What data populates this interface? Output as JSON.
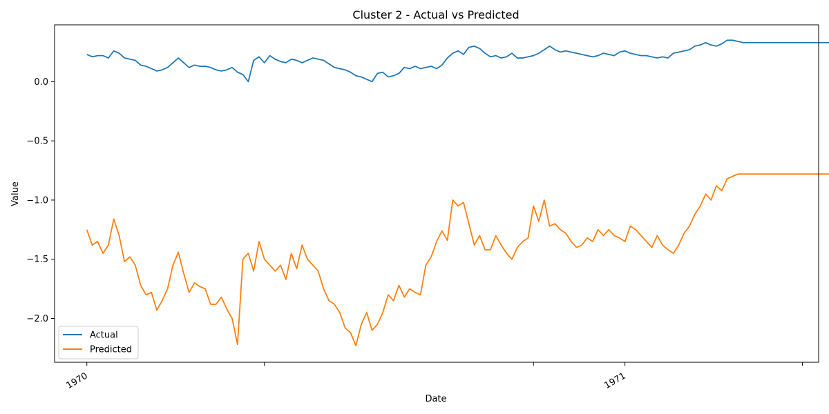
{
  "chart_data": {
    "type": "line",
    "title": "Cluster 2 - Actual vs Predicted",
    "xlabel": "Date",
    "ylabel": "Value",
    "xlim": [
      -0.06,
      1.36
    ],
    "ylim": [
      -2.37,
      0.48
    ],
    "x_ticks": [
      {
        "value": 0.0,
        "label": "1970"
      },
      {
        "value": 0.33,
        "label": ""
      },
      {
        "value": 0.83,
        "label": ""
      },
      {
        "value": 1.0,
        "label": "1971"
      },
      {
        "value": 1.33,
        "label": ""
      }
    ],
    "y_ticks": [
      {
        "value": 0.0,
        "label": "0.0"
      },
      {
        "value": -0.5,
        "label": "−0.5"
      },
      {
        "value": -1.0,
        "label": "−1.0"
      },
      {
        "value": -1.5,
        "label": "−1.5"
      },
      {
        "value": -2.0,
        "label": "−2.0"
      }
    ],
    "legend_position": "lower-left",
    "grid": false,
    "series": [
      {
        "name": "Actual",
        "color": "#1f77b4",
        "x": [
          0.0,
          0.01,
          0.02,
          0.03,
          0.04,
          0.05,
          0.06,
          0.07,
          0.08,
          0.09,
          0.1,
          0.11,
          0.12,
          0.13,
          0.14,
          0.15,
          0.16,
          0.17,
          0.18,
          0.19,
          0.2,
          0.21,
          0.22,
          0.23,
          0.24,
          0.25,
          0.26,
          0.27,
          0.28,
          0.29,
          0.3,
          0.31,
          0.32,
          0.33,
          0.34,
          0.35,
          0.36,
          0.37,
          0.38,
          0.39,
          0.4,
          0.41,
          0.42,
          0.43,
          0.44,
          0.45,
          0.46,
          0.47,
          0.48,
          0.49,
          0.5,
          0.51,
          0.52,
          0.53,
          0.54,
          0.55,
          0.56,
          0.57,
          0.58,
          0.59,
          0.6,
          0.61,
          0.62,
          0.63,
          0.64,
          0.65,
          0.66,
          0.67,
          0.68,
          0.69,
          0.7,
          0.71,
          0.72,
          0.73,
          0.74,
          0.75,
          0.76,
          0.77,
          0.78,
          0.79,
          0.8,
          0.81,
          0.82,
          0.83,
          0.84,
          0.85,
          0.86,
          0.87,
          0.88,
          0.89,
          0.9,
          0.91,
          0.92,
          0.93,
          0.94,
          0.95,
          0.96,
          0.97,
          0.98,
          0.99,
          1.0,
          1.01,
          1.02,
          1.03,
          1.04,
          1.05,
          1.06,
          1.07,
          1.08,
          1.09,
          1.1,
          1.11,
          1.12,
          1.13,
          1.14,
          1.15,
          1.16,
          1.17,
          1.18,
          1.19,
          1.2,
          1.21,
          1.22,
          1.23,
          1.24,
          1.25,
          1.26,
          1.27,
          1.28,
          1.29,
          1.3,
          1.31,
          1.32,
          1.33,
          1.34,
          1.35,
          1.36,
          1.37,
          1.38,
          1.39
        ],
        "y": [
          0.23,
          0.21,
          0.22,
          0.22,
          0.2,
          0.26,
          0.24,
          0.2,
          0.19,
          0.18,
          0.14,
          0.13,
          0.11,
          0.09,
          0.1,
          0.12,
          0.16,
          0.2,
          0.16,
          0.12,
          0.14,
          0.13,
          0.13,
          0.12,
          0.1,
          0.09,
          0.1,
          0.12,
          0.08,
          0.06,
          0.0,
          0.18,
          0.21,
          0.16,
          0.22,
          0.19,
          0.17,
          0.16,
          0.19,
          0.18,
          0.16,
          0.18,
          0.2,
          0.19,
          0.18,
          0.15,
          0.12,
          0.11,
          0.1,
          0.08,
          0.05,
          0.04,
          0.02,
          0.0,
          0.07,
          0.08,
          0.04,
          0.05,
          0.07,
          0.12,
          0.11,
          0.13,
          0.11,
          0.12,
          0.13,
          0.11,
          0.14,
          0.2,
          0.24,
          0.26,
          0.23,
          0.29,
          0.3,
          0.28,
          0.24,
          0.21,
          0.22,
          0.2,
          0.21,
          0.24,
          0.2,
          0.2,
          0.21,
          0.22,
          0.24,
          0.27,
          0.3,
          0.27,
          0.25,
          0.26,
          0.25,
          0.24,
          0.23,
          0.22,
          0.21,
          0.22,
          0.24,
          0.23,
          0.22,
          0.25,
          0.26,
          0.24,
          0.23,
          0.22,
          0.22,
          0.21,
          0.2,
          0.21,
          0.2,
          0.24,
          0.25,
          0.26,
          0.27,
          0.3,
          0.31,
          0.33,
          0.31,
          0.3,
          0.32,
          0.35,
          0.35,
          0.34,
          0.33,
          0.33,
          0.33,
          0.33,
          0.33,
          0.33,
          0.33,
          0.33,
          0.33,
          0.33,
          0.33,
          0.33,
          0.33,
          0.33,
          0.33,
          0.33,
          0.33,
          0.33
        ]
      },
      {
        "name": "Predicted",
        "color": "#ff7f0e",
        "x": [
          0.0,
          0.01,
          0.02,
          0.03,
          0.04,
          0.05,
          0.06,
          0.07,
          0.08,
          0.09,
          0.1,
          0.11,
          0.12,
          0.13,
          0.14,
          0.15,
          0.16,
          0.17,
          0.18,
          0.19,
          0.2,
          0.21,
          0.22,
          0.23,
          0.24,
          0.25,
          0.26,
          0.27,
          0.28,
          0.29,
          0.3,
          0.31,
          0.32,
          0.33,
          0.34,
          0.35,
          0.36,
          0.37,
          0.38,
          0.39,
          0.4,
          0.41,
          0.42,
          0.43,
          0.44,
          0.45,
          0.46,
          0.47,
          0.48,
          0.49,
          0.5,
          0.51,
          0.52,
          0.53,
          0.54,
          0.55,
          0.56,
          0.57,
          0.58,
          0.59,
          0.6,
          0.61,
          0.62,
          0.63,
          0.64,
          0.65,
          0.66,
          0.67,
          0.68,
          0.69,
          0.7,
          0.71,
          0.72,
          0.73,
          0.74,
          0.75,
          0.76,
          0.77,
          0.78,
          0.79,
          0.8,
          0.81,
          0.82,
          0.83,
          0.84,
          0.85,
          0.86,
          0.87,
          0.88,
          0.89,
          0.9,
          0.91,
          0.92,
          0.93,
          0.94,
          0.95,
          0.96,
          0.97,
          0.98,
          0.99,
          1.0,
          1.01,
          1.02,
          1.03,
          1.04,
          1.05,
          1.06,
          1.07,
          1.08,
          1.09,
          1.1,
          1.11,
          1.12,
          1.13,
          1.14,
          1.15,
          1.16,
          1.17,
          1.18,
          1.19,
          1.2,
          1.21,
          1.22,
          1.23,
          1.24,
          1.25,
          1.26,
          1.27,
          1.28,
          1.29,
          1.3,
          1.31,
          1.32,
          1.33,
          1.34,
          1.35,
          1.36,
          1.37,
          1.38,
          1.39
        ],
        "y": [
          -1.25,
          -1.38,
          -1.35,
          -1.45,
          -1.38,
          -1.16,
          -1.3,
          -1.52,
          -1.48,
          -1.55,
          -1.72,
          -1.8,
          -1.78,
          -1.93,
          -1.85,
          -1.75,
          -1.55,
          -1.44,
          -1.62,
          -1.78,
          -1.7,
          -1.73,
          -1.75,
          -1.88,
          -1.88,
          -1.82,
          -1.92,
          -2.0,
          -2.22,
          -1.5,
          -1.45,
          -1.6,
          -1.35,
          -1.5,
          -1.55,
          -1.6,
          -1.55,
          -1.67,
          -1.45,
          -1.58,
          -1.38,
          -1.5,
          -1.55,
          -1.6,
          -1.75,
          -1.85,
          -1.88,
          -1.95,
          -2.08,
          -2.12,
          -2.23,
          -2.05,
          -1.95,
          -2.1,
          -2.05,
          -1.95,
          -1.8,
          -1.85,
          -1.72,
          -1.82,
          -1.75,
          -1.78,
          -1.8,
          -1.55,
          -1.48,
          -1.35,
          -1.26,
          -1.34,
          -1.0,
          -1.05,
          -1.02,
          -1.2,
          -1.38,
          -1.3,
          -1.42,
          -1.42,
          -1.3,
          -1.38,
          -1.45,
          -1.5,
          -1.4,
          -1.35,
          -1.32,
          -1.05,
          -1.18,
          -1.0,
          -1.22,
          -1.2,
          -1.25,
          -1.28,
          -1.35,
          -1.4,
          -1.38,
          -1.32,
          -1.35,
          -1.25,
          -1.3,
          -1.25,
          -1.3,
          -1.32,
          -1.35,
          -1.22,
          -1.25,
          -1.3,
          -1.35,
          -1.4,
          -1.3,
          -1.38,
          -1.42,
          -1.45,
          -1.38,
          -1.28,
          -1.22,
          -1.12,
          -1.05,
          -0.95,
          -1.0,
          -0.88,
          -0.92,
          -0.82,
          -0.8,
          -0.78,
          -0.78,
          -0.78,
          -0.78,
          -0.78,
          -0.78,
          -0.78,
          -0.78,
          -0.78,
          -0.78,
          -0.78,
          -0.78,
          -0.78,
          -0.78,
          -0.78,
          -0.78,
          -0.78,
          -0.78,
          -0.78
        ]
      }
    ]
  }
}
